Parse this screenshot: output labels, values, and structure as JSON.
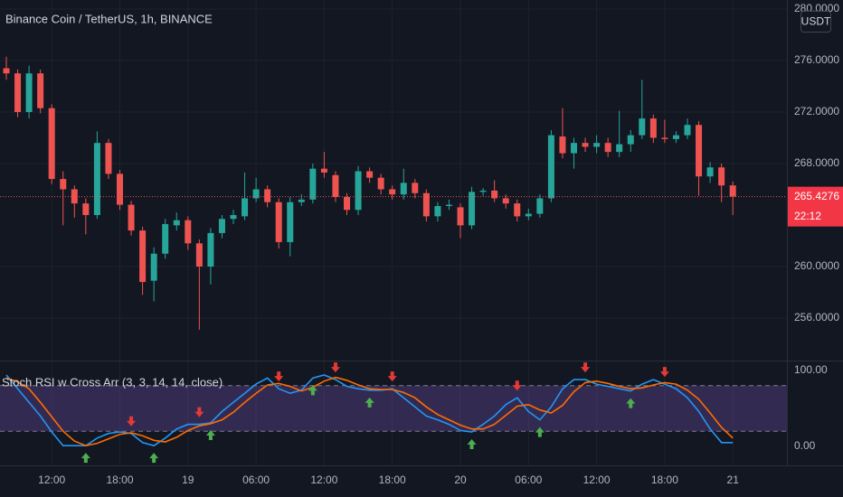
{
  "chart_data": [
    {
      "type": "candlestick",
      "title": "Binance Coin / TetherUS, 1h, BINANCE",
      "currency": "USDT",
      "categories": [
        null,
        null,
        null,
        null,
        "12:00",
        null,
        null,
        null,
        null,
        null,
        "18:00",
        null,
        null,
        null,
        null,
        null,
        "19",
        null,
        null,
        null,
        null,
        null,
        "06:00",
        null,
        null,
        null,
        null,
        null,
        "12:00",
        null,
        null,
        null,
        null,
        null,
        "18:00",
        null,
        null,
        null,
        null,
        null,
        "20",
        null,
        null,
        null,
        null,
        null,
        "06:00",
        null,
        null,
        null,
        null,
        null,
        "12:00",
        null,
        null,
        null,
        null,
        null,
        "18:00",
        null,
        null,
        null,
        null,
        null,
        "21"
      ],
      "open": [
        275.4,
        275.0,
        272.0,
        275.0,
        272.3,
        266.8,
        266.0,
        264.9,
        264.0,
        269.6,
        267.2,
        264.8,
        262.8,
        258.9,
        261.0,
        263.2,
        263.6,
        261.8,
        260.0,
        262.6,
        263.7,
        263.9,
        265.3,
        266.0,
        265.0,
        261.9,
        265.0,
        265.2,
        267.6,
        267.1,
        265.4,
        264.4,
        267.4,
        266.9,
        266.0,
        265.6,
        266.5,
        265.7,
        263.9,
        264.7,
        264.6,
        263.2,
        265.8,
        265.9,
        265.3,
        264.9,
        263.9,
        264.1,
        265.3,
        270.1,
        268.8,
        269.6,
        269.3,
        269.6,
        268.9,
        269.5,
        270.2,
        271.5,
        270.0,
        269.9,
        270.2,
        271.0,
        267.0,
        267.7,
        266.3
      ],
      "high": [
        276.3,
        275.3,
        275.6,
        275.3,
        272.6,
        267.4,
        266.3,
        265.3,
        270.5,
        269.9,
        267.5,
        265.1,
        263.1,
        261.5,
        263.7,
        264.2,
        263.9,
        262.1,
        263.0,
        264.0,
        264.4,
        267.3,
        266.9,
        266.3,
        265.3,
        265.4,
        265.6,
        268.0,
        268.9,
        267.4,
        265.7,
        267.8,
        267.7,
        267.2,
        266.3,
        267.6,
        266.8,
        266.0,
        265.0,
        265.2,
        264.9,
        266.2,
        266.1,
        266.7,
        265.6,
        265.2,
        264.5,
        265.6,
        270.6,
        272.3,
        270.0,
        270.0,
        270.2,
        270.0,
        272.1,
        270.6,
        274.5,
        271.8,
        271.4,
        270.5,
        271.5,
        271.3,
        268.1,
        268.0,
        266.6
      ],
      "low": [
        274.5,
        271.6,
        271.5,
        271.9,
        266.4,
        263.2,
        263.8,
        262.5,
        263.7,
        266.8,
        264.4,
        262.4,
        257.8,
        257.3,
        260.6,
        262.8,
        261.3,
        255.1,
        258.6,
        262.2,
        263.3,
        263.6,
        265.0,
        264.6,
        261.4,
        260.8,
        264.7,
        264.9,
        266.9,
        265.0,
        264.0,
        264.0,
        266.5,
        265.6,
        265.2,
        265.2,
        265.3,
        263.5,
        263.5,
        264.4,
        262.2,
        262.9,
        265.5,
        265.0,
        264.5,
        263.5,
        263.6,
        263.8,
        265.0,
        268.4,
        267.6,
        268.9,
        268.8,
        268.5,
        268.5,
        268.9,
        269.9,
        269.6,
        269.6,
        269.6,
        269.9,
        265.5,
        266.5,
        265.0,
        264.0
      ],
      "close": [
        275.0,
        272.0,
        275.0,
        272.3,
        266.8,
        266.0,
        264.9,
        264.0,
        269.6,
        267.2,
        264.8,
        262.8,
        258.8,
        261.0,
        263.3,
        263.6,
        261.8,
        260.0,
        262.6,
        263.7,
        264.0,
        265.3,
        266.0,
        265.0,
        261.9,
        265.0,
        265.2,
        267.6,
        267.3,
        265.4,
        264.4,
        267.4,
        266.9,
        266.0,
        265.6,
        266.5,
        265.7,
        263.9,
        264.7,
        264.8,
        263.2,
        265.8,
        265.9,
        265.3,
        264.9,
        263.9,
        264.1,
        265.3,
        270.2,
        268.8,
        269.6,
        269.3,
        269.6,
        268.9,
        269.5,
        270.2,
        271.5,
        270.0,
        269.9,
        270.2,
        271.0,
        267.0,
        267.7,
        266.3,
        265.4276
      ],
      "up_color": "#26a69a",
      "down_color": "#ef5350",
      "ylim": [
        252.77,
        280.7
      ],
      "yticks": [
        {
          "value": 256,
          "label": "256.0000"
        },
        {
          "value": 260,
          "label": "260.0000"
        },
        {
          "value": 268,
          "label": "268.0000"
        },
        {
          "value": 272,
          "label": "272.0000"
        },
        {
          "value": 276,
          "label": "276.0000"
        },
        {
          "value": 280,
          "label": "280.0000"
        }
      ],
      "last_price": 265.4276,
      "countdown": "22:12",
      "grid": true
    },
    {
      "type": "line",
      "title": "Stoch RSI w Cross Arr (3, 3, 14, 14, close)",
      "series": [
        {
          "color": "#2196f3",
          "values": [
            94,
            76,
            58,
            40,
            19,
            1,
            1,
            1,
            11,
            17,
            19,
            17,
            5,
            1,
            11,
            23,
            29,
            29,
            31,
            46,
            58,
            70,
            82,
            90,
            76,
            70,
            74,
            90,
            94,
            88,
            79,
            76,
            74,
            74,
            76,
            64,
            52,
            40,
            35,
            29,
            21,
            19,
            29,
            40,
            55,
            64,
            46,
            35,
            52,
            76,
            88,
            88,
            82,
            79,
            76,
            73,
            82,
            88,
            82,
            76,
            64,
            46,
            23,
            5,
            5
          ]
        },
        {
          "color": "#ff6d00",
          "values": [
            90,
            85,
            76,
            58,
            39,
            20,
            7,
            1,
            4,
            10,
            16,
            18,
            14,
            8,
            6,
            12,
            21,
            27,
            30,
            35,
            45,
            58,
            70,
            81,
            83,
            79,
            73,
            78,
            86,
            91,
            87,
            81,
            76,
            75,
            75,
            71,
            64,
            52,
            42,
            35,
            28,
            23,
            23,
            29,
            41,
            53,
            55,
            48,
            44,
            54,
            72,
            84,
            86,
            83,
            79,
            76,
            77,
            81,
            84,
            82,
            74,
            62,
            44,
            25,
            11
          ]
        }
      ],
      "ylim": [
        -25,
        111.9
      ],
      "yticks": [
        {
          "value": 0,
          "label": "0.00"
        },
        {
          "value": 100,
          "label": "100.00"
        }
      ],
      "bands": [
        20,
        80
      ],
      "band_color": "#7e57c2",
      "cross_up": [
        7,
        13,
        18,
        27,
        32,
        41,
        47,
        55
      ],
      "cross_down": [
        11,
        17,
        24,
        29,
        34,
        45,
        51,
        58
      ],
      "up_arrow_color": "#4caf50",
      "down_arrow_color": "#e53935"
    }
  ]
}
